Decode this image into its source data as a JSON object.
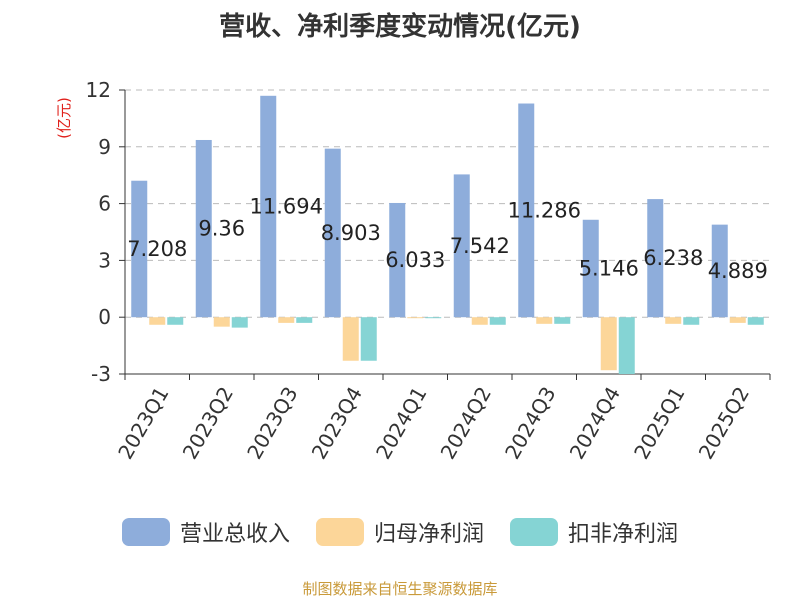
{
  "chart_data": {
    "type": "bar",
    "title": "营收、净利季度变动情况(亿元)",
    "ylabel": "(亿元)",
    "ylim": [
      -3,
      12
    ],
    "yticks": [
      -3,
      0,
      3,
      6,
      9,
      12
    ],
    "grid": true,
    "legend_position": "bottom",
    "categories": [
      "2023Q1",
      "2023Q2",
      "2023Q3",
      "2023Q4",
      "2024Q1",
      "2024Q2",
      "2024Q3",
      "2024Q4",
      "2025Q1",
      "2025Q2"
    ],
    "series": [
      {
        "name": "营业总收入",
        "color": "#8eaddb",
        "values": [
          7.208,
          9.36,
          11.694,
          8.903,
          6.033,
          7.542,
          11.286,
          5.146,
          6.238,
          4.889
        ],
        "data_labels": [
          "7.208",
          "9.36",
          "11.694",
          "8.903",
          "6.033",
          "7.542",
          "11.286",
          "5.146",
          "6.238",
          "4.889"
        ]
      },
      {
        "name": "归母净利润",
        "color": "#fcd699",
        "values": [
          -0.4,
          -0.5,
          -0.3,
          -2.3,
          -0.05,
          -0.4,
          -0.35,
          -2.8,
          -0.35,
          -0.3
        ]
      },
      {
        "name": "扣非净利润",
        "color": "#85d4d4",
        "values": [
          -0.4,
          -0.55,
          -0.3,
          -2.3,
          -0.05,
          -0.4,
          -0.35,
          -3.0,
          -0.4,
          -0.4
        ]
      }
    ]
  },
  "source": "制图数据来自恒生聚源数据库"
}
